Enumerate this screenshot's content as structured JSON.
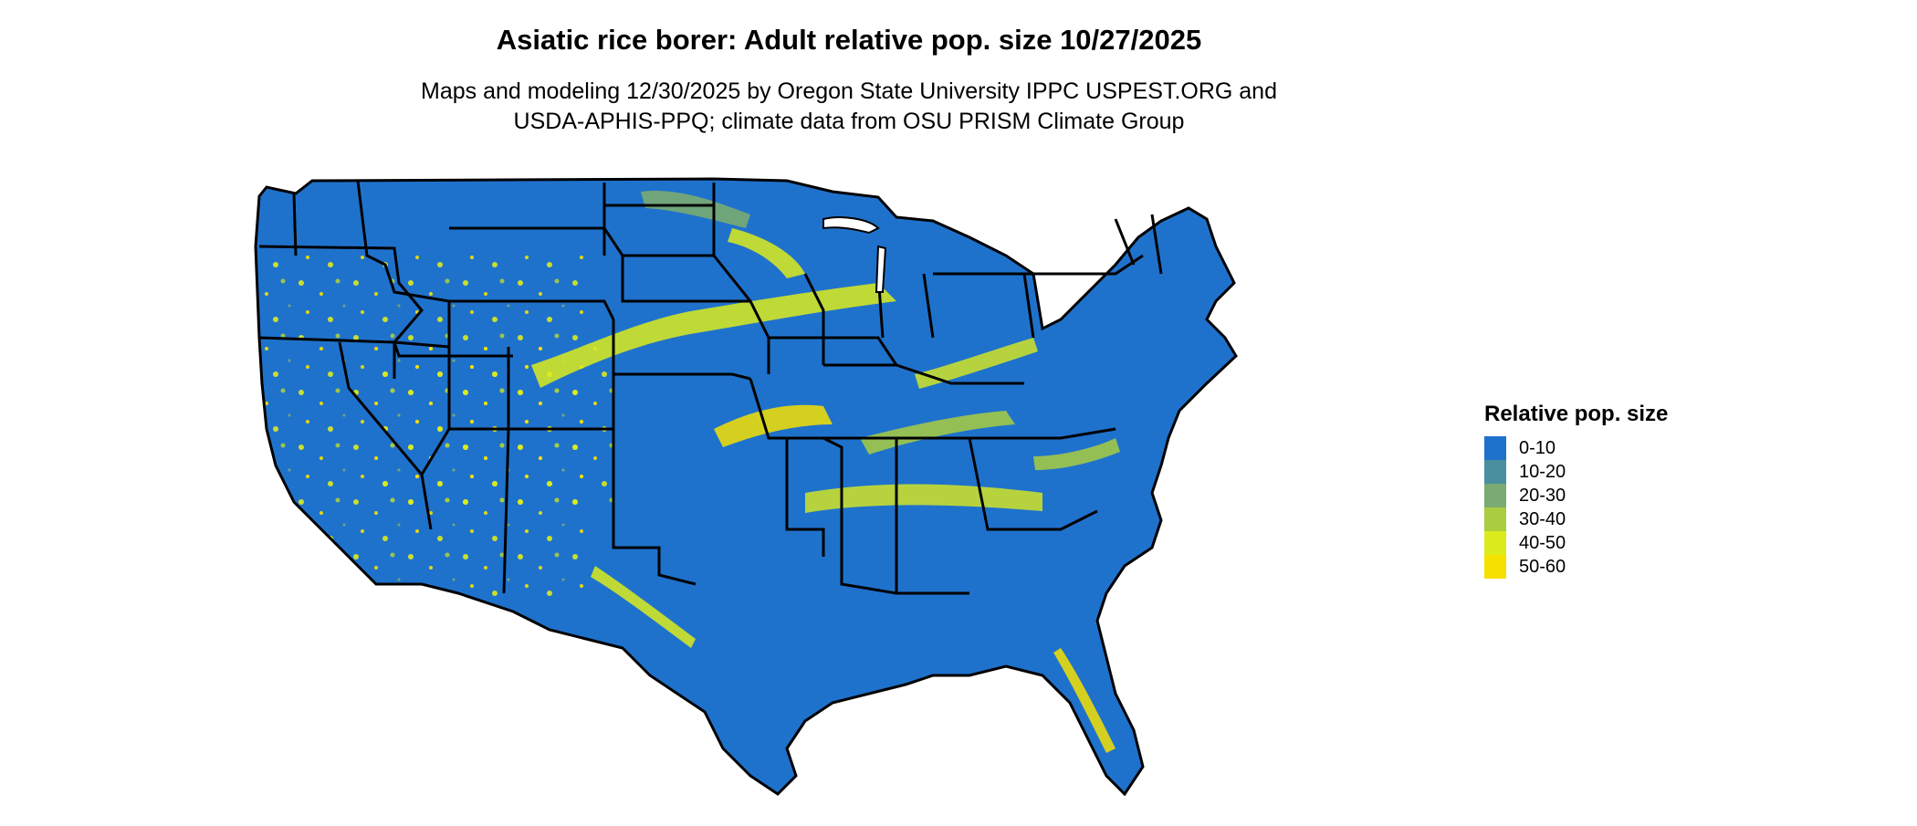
{
  "title": "Asiatic rice borer: Adult relative pop. size 10/27/2025",
  "subtitle_line1": "Maps and modeling 12/30/2025 by Oregon State University IPPC USPEST.ORG and",
  "subtitle_line2": "USDA-APHIS-PPQ; climate data from OSU PRISM Climate Group",
  "legend": {
    "title": "Relative pop. size",
    "items": [
      {
        "label": "0-10",
        "color": "#1f72cc"
      },
      {
        "label": "10-20",
        "color": "#4a8fa0"
      },
      {
        "label": "20-30",
        "color": "#79ab72"
      },
      {
        "label": "30-40",
        "color": "#a9cd3f"
      },
      {
        "label": "40-50",
        "color": "#dceb1c"
      },
      {
        "label": "50-60",
        "color": "#f6e000"
      }
    ]
  },
  "map": {
    "region": "Contiguous United States",
    "base_color": "#1f72cc",
    "border_color": "#000000"
  }
}
